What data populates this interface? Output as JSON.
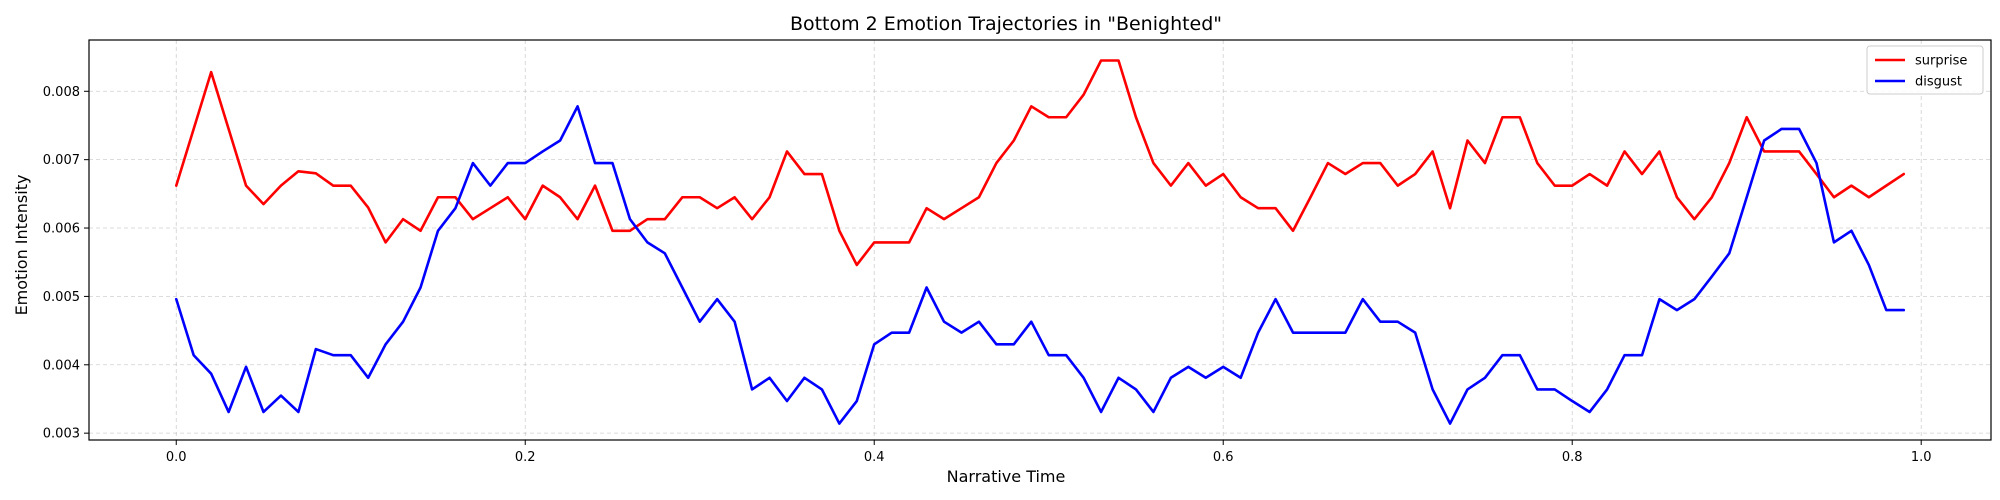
{
  "chart_data": {
    "type": "line",
    "title": "Bottom 2 Emotion Trajectories in \"Benighted\"",
    "xlabel": "Narrative Time",
    "ylabel": "Emotion Intensity",
    "xlim": [
      -0.05,
      1.04
    ],
    "ylim": [
      0.0029,
      0.00875
    ],
    "xticks": [
      0.0,
      0.2,
      0.4,
      0.6,
      0.8,
      1.0
    ],
    "xtick_labels": [
      "0.0",
      "0.2",
      "0.4",
      "0.6",
      "0.8",
      "1.0"
    ],
    "yticks": [
      0.003,
      0.004,
      0.005,
      0.006,
      0.007,
      0.008
    ],
    "ytick_labels": [
      "0.003",
      "0.004",
      "0.005",
      "0.006",
      "0.007",
      "0.008"
    ],
    "grid": true,
    "legend_position": "top-right",
    "x": [
      0.0,
      0.01,
      0.02,
      0.03,
      0.04,
      0.05,
      0.06,
      0.07,
      0.08,
      0.09,
      0.1,
      0.11,
      0.12,
      0.13,
      0.14,
      0.15,
      0.16,
      0.17,
      0.18,
      0.19,
      0.2,
      0.21,
      0.22,
      0.23,
      0.24,
      0.25,
      0.26,
      0.27,
      0.28,
      0.29,
      0.3,
      0.31,
      0.32,
      0.33,
      0.34,
      0.35,
      0.36,
      0.37,
      0.38,
      0.39,
      0.4,
      0.41,
      0.42,
      0.43,
      0.44,
      0.45,
      0.46,
      0.47,
      0.48,
      0.49,
      0.5,
      0.51,
      0.52,
      0.53,
      0.54,
      0.55,
      0.56,
      0.57,
      0.58,
      0.59,
      0.6,
      0.61,
      0.62,
      0.63,
      0.64,
      0.65,
      0.66,
      0.67,
      0.68,
      0.69,
      0.7,
      0.71,
      0.72,
      0.73,
      0.74,
      0.75,
      0.76,
      0.77,
      0.78,
      0.79,
      0.8,
      0.81,
      0.82,
      0.83,
      0.84,
      0.85,
      0.86,
      0.87,
      0.88,
      0.89,
      0.9,
      0.91,
      0.92,
      0.93,
      0.94,
      0.95,
      0.96,
      0.97,
      0.98,
      0.99
    ],
    "series": [
      {
        "name": "surprise",
        "color": "#ff0000",
        "values": [
          0.00662,
          0.00745,
          0.00828,
          0.00745,
          0.00662,
          0.00635,
          0.00662,
          0.00683,
          0.0068,
          0.00662,
          0.00662,
          0.0063,
          0.00579,
          0.00613,
          0.00596,
          0.00645,
          0.00645,
          0.00613,
          0.00629,
          0.00645,
          0.00613,
          0.00662,
          0.00645,
          0.00613,
          0.00662,
          0.00596,
          0.00596,
          0.00613,
          0.00613,
          0.00645,
          0.00645,
          0.00629,
          0.00645,
          0.00613,
          0.00645,
          0.00712,
          0.00679,
          0.00679,
          0.00596,
          0.00546,
          0.00579,
          0.00579,
          0.00579,
          0.00629,
          0.00613,
          0.00629,
          0.00645,
          0.00695,
          0.00728,
          0.00778,
          0.00762,
          0.00762,
          0.00795,
          0.00845,
          0.00845,
          0.00762,
          0.00695,
          0.00662,
          0.00695,
          0.00662,
          0.00679,
          0.00645,
          0.00629,
          0.00629,
          0.00596,
          0.00645,
          0.00695,
          0.00679,
          0.00695,
          0.00695,
          0.00662,
          0.00679,
          0.00712,
          0.00629,
          0.00728,
          0.00695,
          0.00762,
          0.00762,
          0.00695,
          0.00662,
          0.00662,
          0.00679,
          0.00662,
          0.00712,
          0.00679,
          0.00712,
          0.00645,
          0.00613,
          0.00645,
          0.00695,
          0.00762,
          0.00712,
          0.00712,
          0.00712,
          0.00679,
          0.00645,
          0.00662,
          0.00645,
          0.00662,
          0.00679
        ]
      },
      {
        "name": "disgust",
        "color": "#0000ff",
        "values": [
          0.00496,
          0.00414,
          0.00387,
          0.00331,
          0.00397,
          0.00331,
          0.00355,
          0.00331,
          0.00423,
          0.00414,
          0.00414,
          0.00381,
          0.0043,
          0.00463,
          0.00513,
          0.00596,
          0.00629,
          0.00695,
          0.00662,
          0.00695,
          0.00695,
          0.00712,
          0.00728,
          0.00778,
          0.00695,
          0.00695,
          0.00613,
          0.00579,
          0.00563,
          0.00513,
          0.00463,
          0.00496,
          0.00463,
          0.00364,
          0.00381,
          0.00347,
          0.00381,
          0.00364,
          0.00314,
          0.00347,
          0.0043,
          0.00447,
          0.00447,
          0.00513,
          0.00463,
          0.00447,
          0.00463,
          0.0043,
          0.0043,
          0.00463,
          0.00414,
          0.00414,
          0.00381,
          0.00331,
          0.00381,
          0.00364,
          0.00331,
          0.00381,
          0.00397,
          0.00381,
          0.00397,
          0.00381,
          0.00447,
          0.00496,
          0.00447,
          0.00447,
          0.00447,
          0.00447,
          0.00496,
          0.00463,
          0.00463,
          0.00447,
          0.00364,
          0.00314,
          0.00364,
          0.00381,
          0.00414,
          0.00414,
          0.00364,
          0.00364,
          0.00347,
          0.00331,
          0.00364,
          0.00414,
          0.00414,
          0.00496,
          0.0048,
          0.00496,
          0.00529,
          0.00563,
          0.00645,
          0.00728,
          0.00745,
          0.00745,
          0.00695,
          0.00579,
          0.00596,
          0.00546,
          0.0048,
          0.0048
        ]
      }
    ]
  }
}
